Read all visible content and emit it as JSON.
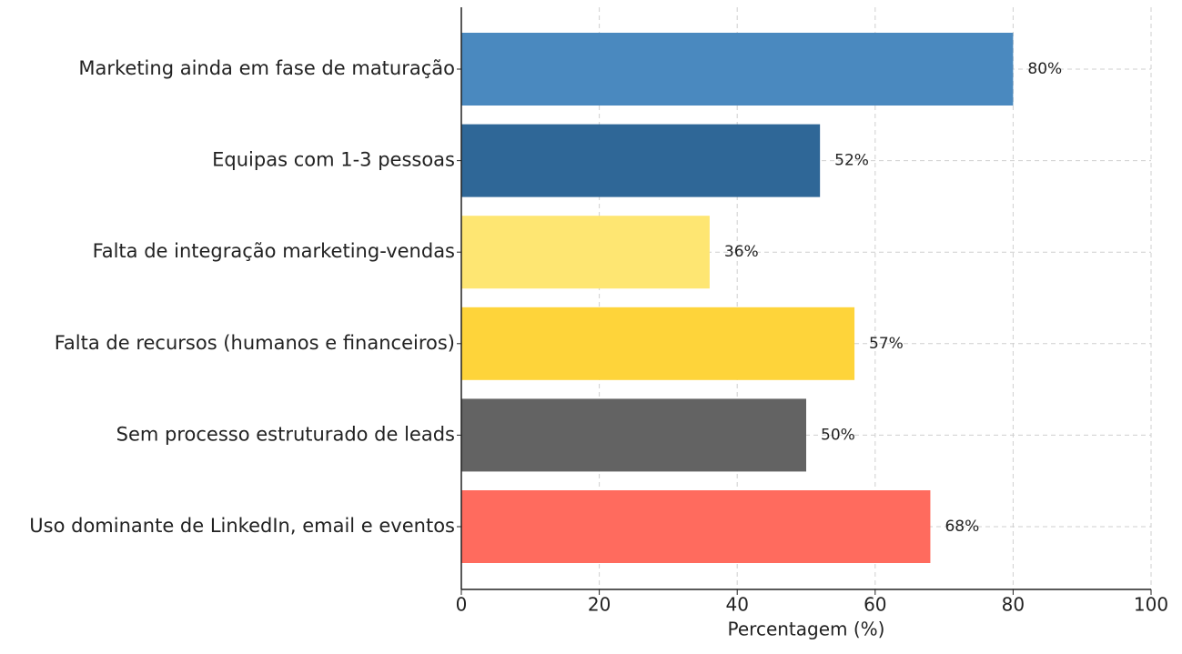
{
  "chart_data": {
    "type": "barh",
    "xlabel": "Percentagem (%)",
    "categories": [
      "Marketing ainda em fase de maturação",
      "Equipas com 1-3 pessoas",
      "Falta de integração marketing-vendas",
      "Falta de recursos (humanos e financeiros)",
      "Sem processo estruturado de leads",
      "Uso dominante de LinkedIn, email e eventos"
    ],
    "values": [
      80,
      52,
      36,
      57,
      50,
      68
    ],
    "value_labels": [
      "80%",
      "52%",
      "36%",
      "57%",
      "50%",
      "68%"
    ],
    "colors": [
      "#4a89bf",
      "#2f6797",
      "#fee672",
      "#fed43a",
      "#636363",
      "#ff6b5e"
    ],
    "xlim": [
      0,
      100
    ],
    "xticks": [
      0,
      20,
      40,
      60,
      80,
      100
    ],
    "grid": true
  }
}
